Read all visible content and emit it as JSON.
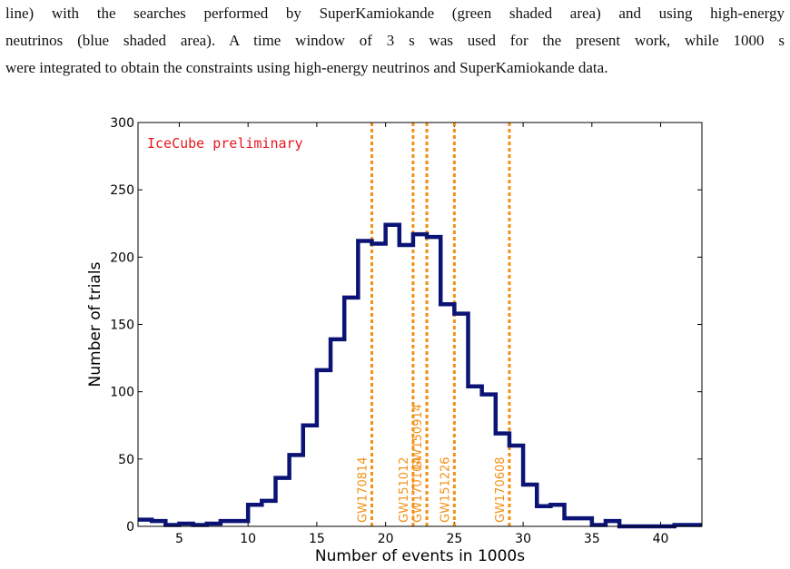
{
  "caption": {
    "lines": [
      "line) with the searches performed by SuperKamiokande (green shaded area) and using high-energy",
      "neutrinos (blue shaded area).  A time window of 3 s was used for the present work, while 1000 s",
      "were integrated to obtain the constraints using high-energy neutrinos and SuperKamiokande data."
    ]
  },
  "chart_data": {
    "type": "histogram",
    "annotation": "IceCube preliminary",
    "xlabel": "Number of events in 1000s",
    "ylabel": "Number of trials",
    "xlim": [
      2,
      43
    ],
    "ylim": [
      0,
      300
    ],
    "xticks": [
      5,
      10,
      15,
      20,
      25,
      30,
      35,
      40
    ],
    "yticks": [
      0,
      50,
      100,
      150,
      200,
      250,
      300
    ],
    "bin_width": 1,
    "bin_edges_start": 2,
    "counts": [
      5,
      4,
      1,
      2,
      1,
      2,
      4,
      4,
      16,
      19,
      36,
      53,
      75,
      116,
      139,
      170,
      212,
      210,
      224,
      209,
      217,
      215,
      165,
      158,
      104,
      98,
      69,
      60,
      31,
      15,
      16,
      6,
      6,
      1,
      4,
      0,
      0,
      0,
      0,
      1,
      1
    ],
    "line_color": "#0b1475",
    "marker_color": "#f39016",
    "annotation_color": "#e8161e",
    "markers": [
      {
        "x": 19,
        "label": "GW170814"
      },
      {
        "x": 22,
        "label": "GW151012"
      },
      {
        "x": 23,
        "label": "GW170104"
      },
      {
        "x": 23,
        "label": "GW150914"
      },
      {
        "x": 25,
        "label": "GW151226"
      },
      {
        "x": 29,
        "label": "GW170608"
      }
    ]
  }
}
